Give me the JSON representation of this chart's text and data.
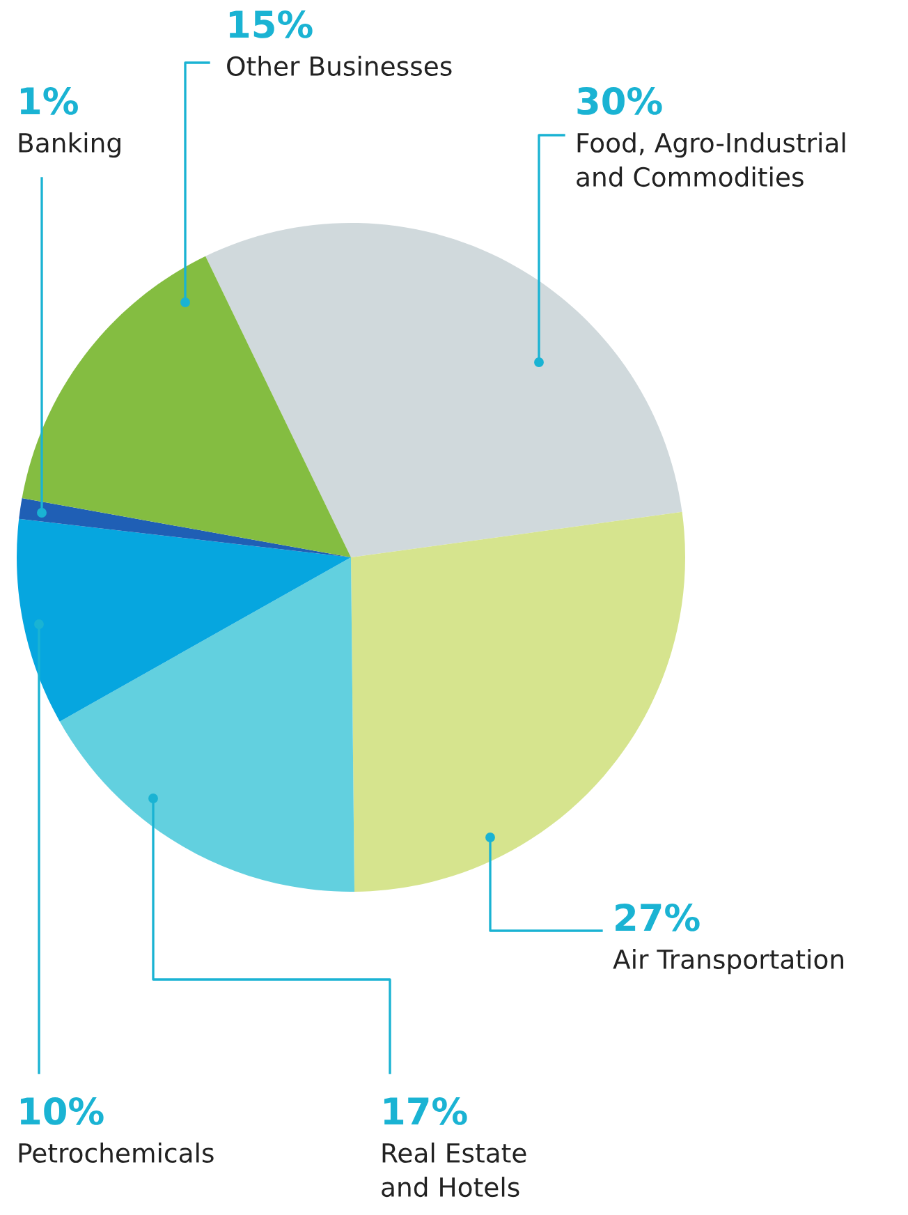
{
  "chart_data": {
    "type": "pie",
    "categories": [
      "Food, Agro-Industrial\nand Commodities",
      "Air Transportation",
      "Real Estate\nand Hotels",
      "Petrochemicals",
      "Banking",
      "Other Businesses"
    ],
    "values": [
      30,
      27,
      17,
      10,
      1,
      15
    ],
    "value_labels": [
      "30%",
      "27%",
      "17%",
      "10%",
      "1%",
      "15%"
    ],
    "colors": [
      "#d0d9dc",
      "#d6e48e",
      "#62d0df",
      "#06a6df",
      "#1f5fb5",
      "#84bd41"
    ],
    "legend": false
  }
}
